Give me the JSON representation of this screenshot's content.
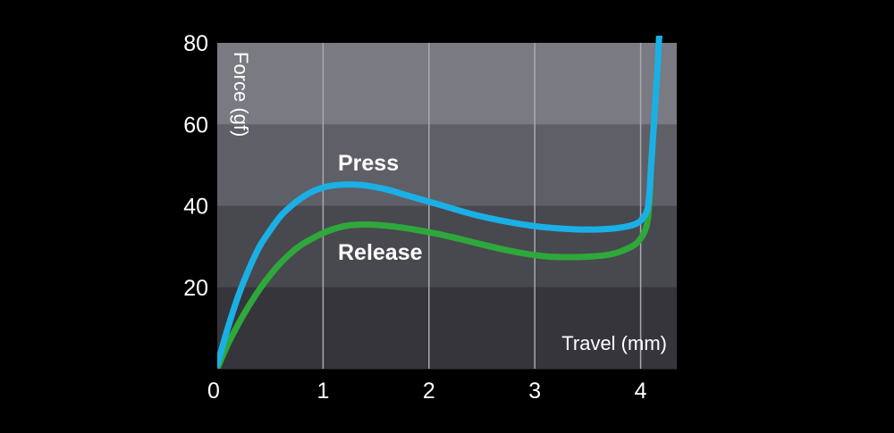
{
  "chart_data": {
    "type": "line",
    "xlabel": "Travel (mm)",
    "ylabel": "Force (gf)",
    "xlim": [
      0,
      4.3
    ],
    "ylim": [
      0,
      80
    ],
    "x_ticks": [
      "0",
      "1",
      "2",
      "3",
      "4"
    ],
    "y_ticks": [
      "20",
      "40",
      "60",
      "80"
    ],
    "grid": "vertical",
    "background_bands": [
      "#7a7a82",
      "#5f5f67",
      "#48484f",
      "#35353b"
    ],
    "series": [
      {
        "name": "Press",
        "color": "#1ab0e6",
        "points": [
          [
            0.0,
            1
          ],
          [
            0.1,
            10
          ],
          [
            0.2,
            18
          ],
          [
            0.3,
            24.5
          ],
          [
            0.4,
            30
          ],
          [
            0.5,
            34
          ],
          [
            0.6,
            37.5
          ],
          [
            0.7,
            40
          ],
          [
            0.8,
            42
          ],
          [
            0.9,
            43.5
          ],
          [
            1.0,
            44.5
          ],
          [
            1.1,
            45
          ],
          [
            1.2,
            45.2
          ],
          [
            1.3,
            45.2
          ],
          [
            1.4,
            45
          ],
          [
            1.6,
            44
          ],
          [
            1.8,
            42.5
          ],
          [
            2.0,
            41
          ],
          [
            2.2,
            39.5
          ],
          [
            2.4,
            38
          ],
          [
            2.6,
            36.8
          ],
          [
            2.8,
            35.8
          ],
          [
            3.0,
            35
          ],
          [
            3.2,
            34.5
          ],
          [
            3.4,
            34.2
          ],
          [
            3.6,
            34.2
          ],
          [
            3.8,
            34.6
          ],
          [
            3.95,
            35.5
          ],
          [
            4.02,
            37
          ],
          [
            4.07,
            40
          ],
          [
            4.1,
            50
          ],
          [
            4.13,
            62
          ],
          [
            4.16,
            74
          ],
          [
            4.18,
            84
          ]
        ]
      },
      {
        "name": "Release",
        "color": "#2ea83a",
        "points": [
          [
            0.0,
            0
          ],
          [
            0.1,
            6
          ],
          [
            0.2,
            11
          ],
          [
            0.3,
            15.5
          ],
          [
            0.4,
            19.5
          ],
          [
            0.5,
            23
          ],
          [
            0.6,
            26
          ],
          [
            0.7,
            28.5
          ],
          [
            0.8,
            30.5
          ],
          [
            0.9,
            32
          ],
          [
            1.0,
            33.3
          ],
          [
            1.1,
            34.3
          ],
          [
            1.2,
            35
          ],
          [
            1.3,
            35.3
          ],
          [
            1.4,
            35.4
          ],
          [
            1.5,
            35.3
          ],
          [
            1.7,
            34.8
          ],
          [
            1.9,
            34
          ],
          [
            2.1,
            33
          ],
          [
            2.3,
            31.8
          ],
          [
            2.5,
            30.5
          ],
          [
            2.7,
            29.3
          ],
          [
            2.9,
            28.3
          ],
          [
            3.1,
            27.6
          ],
          [
            3.3,
            27.4
          ],
          [
            3.5,
            27.5
          ],
          [
            3.7,
            28
          ],
          [
            3.85,
            29.2
          ],
          [
            3.97,
            31
          ],
          [
            4.05,
            34.5
          ],
          [
            4.08,
            40
          ],
          [
            4.1,
            50
          ],
          [
            4.13,
            62
          ],
          [
            4.16,
            74
          ],
          [
            4.18,
            84
          ]
        ]
      }
    ]
  }
}
